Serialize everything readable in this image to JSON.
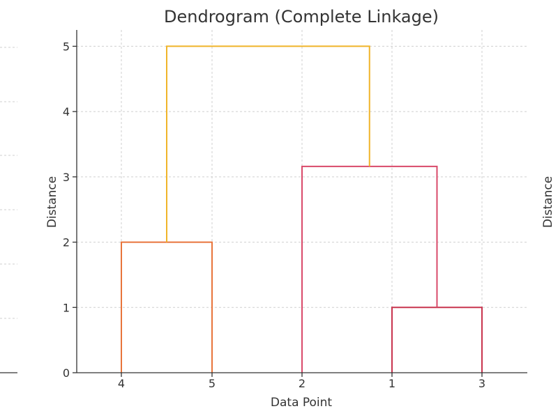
{
  "chart_data": {
    "type": "dendrogram",
    "title": "Dendrogram (Complete Linkage)",
    "xlabel": "Data Point",
    "ylabel": "Distance",
    "leaf_order": [
      "4",
      "5",
      "2",
      "1",
      "3"
    ],
    "yticks": [
      0,
      1,
      2,
      3,
      4,
      5
    ],
    "ylim": [
      0,
      5.25
    ],
    "grid": true,
    "merges": [
      {
        "left": "1",
        "right": "3",
        "height": 1.0,
        "color": "#c8344e"
      },
      {
        "left": "4",
        "right": "5",
        "height": 2.0,
        "color": "#e8743b"
      },
      {
        "left": "2",
        "right": "(1,3)",
        "height": 3.16,
        "color": "#d94a6a"
      },
      {
        "left": "(4,5)",
        "right": "(2,(1,3))",
        "height": 5.0,
        "color": "#f0b429"
      }
    ]
  },
  "neighbor_panels": {
    "right_ylabel": "Distance"
  }
}
